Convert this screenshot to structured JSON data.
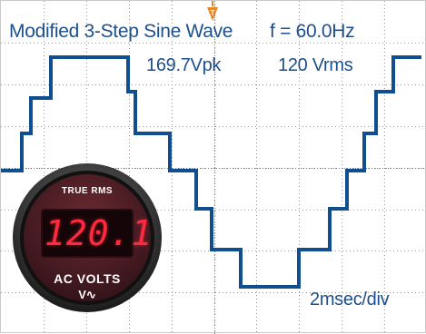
{
  "scope": {
    "title": "Modified 3-Step Sine Wave",
    "frequency": "f = 60.0Hz",
    "peak_voltage": "169.7Vpk",
    "rms_voltage": "120 Vrms",
    "timebase": "2msec/div",
    "trigger_marker": "T"
  },
  "meter": {
    "header": "TRUE RMS",
    "reading": "120.1",
    "unit": "AC VOLTS",
    "symbol": "V∿"
  },
  "colors": {
    "trace": "#114e90",
    "label_text": "#1d4f8c",
    "trigger": "#e8862a",
    "meter_digits": "#ff2a3d",
    "meter_body": "#4a1d22"
  },
  "icons": {
    "trigger": "trigger-marker-icon",
    "meter": "panel-meter"
  }
}
